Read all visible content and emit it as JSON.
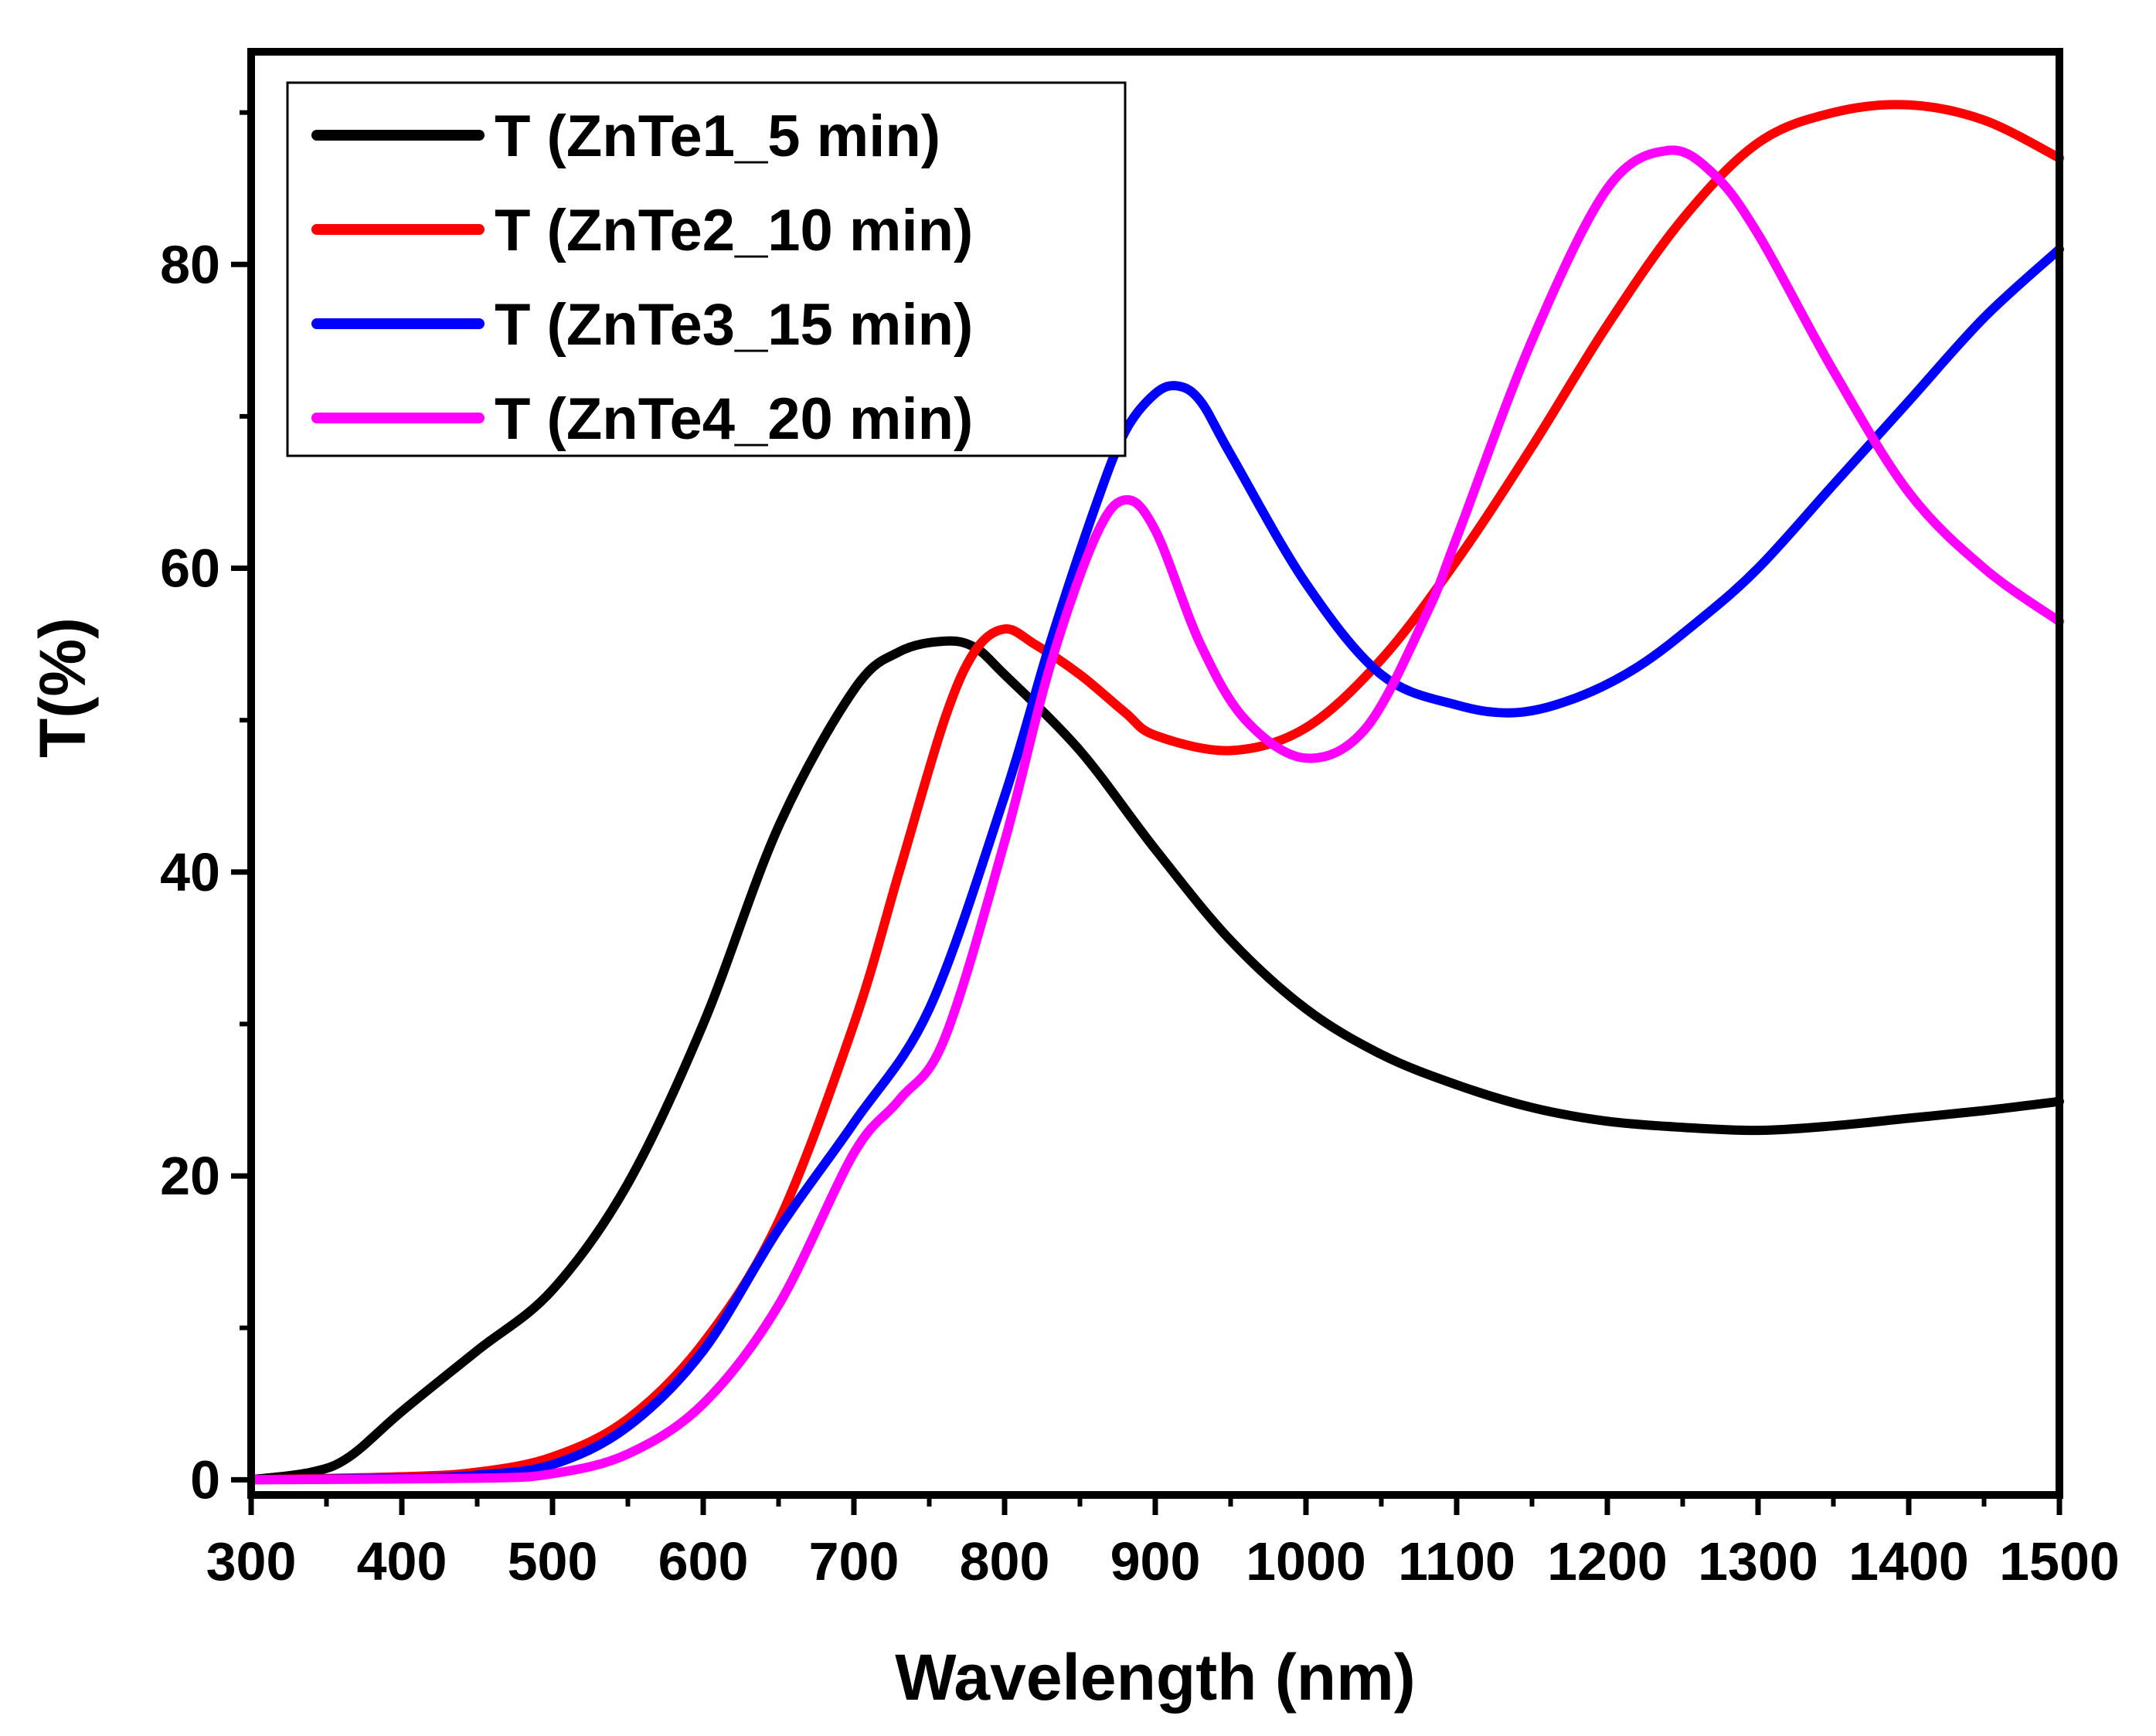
{
  "chart_data": {
    "type": "line",
    "title": "",
    "xlabel": "Wavelength (nm)",
    "ylabel": "T(%)",
    "xlim": [
      300,
      1500
    ],
    "ylim": [
      -1,
      94
    ],
    "xticks": [
      300,
      400,
      500,
      600,
      700,
      800,
      900,
      1000,
      1100,
      1200,
      1300,
      1400,
      1500
    ],
    "xtick_labels": [
      "300",
      "400",
      "500",
      "600",
      "700",
      "800",
      "900",
      "1000",
      "1100",
      "1200",
      "1300",
      "1400",
      "1500"
    ],
    "yticks": [
      0,
      20,
      40,
      60,
      80
    ],
    "ytick_labels": [
      "0",
      "20",
      "40",
      "60",
      "80"
    ],
    "grid": false,
    "legend_position": "top-left",
    "series": [
      {
        "name": "T (ZnTe1_5 min)",
        "color": "#000000",
        "x": [
          300,
          340,
          365,
          400,
          450,
          500,
          550,
          600,
          650,
          700,
          730,
          760,
          780,
          800,
          850,
          900,
          950,
          1000,
          1050,
          1100,
          1150,
          1200,
          1250,
          1300,
          1350,
          1400,
          1450,
          1500
        ],
        "y": [
          0,
          0.5,
          1.5,
          4.5,
          8.5,
          12.5,
          19.5,
          30,
          43,
          52,
          54.5,
          55.2,
          54.8,
          53,
          48,
          41.5,
          35.5,
          31,
          28,
          26,
          24.5,
          23.6,
          23.2,
          23,
          23.3,
          23.8,
          24.3,
          24.9
        ]
      },
      {
        "name": "T (ZnTe2_10 min)",
        "color": "#ff0000",
        "x": [
          300,
          400,
          450,
          500,
          550,
          600,
          650,
          700,
          730,
          760,
          780,
          800,
          820,
          850,
          880,
          900,
          950,
          1000,
          1050,
          1100,
          1150,
          1200,
          1250,
          1300,
          1350,
          1400,
          1450,
          1500
        ],
        "y": [
          0,
          0.2,
          0.5,
          1.5,
          4,
          9,
          17,
          30,
          40,
          50,
          54.5,
          56,
          55,
          53,
          50.5,
          49,
          48,
          49.5,
          54,
          60.5,
          68,
          76,
          83,
          88,
          90,
          90.5,
          89.5,
          87
        ]
      },
      {
        "name": "T (ZnTe3_15 min)",
        "color": "#0000ff",
        "x": [
          300,
          400,
          450,
          500,
          550,
          600,
          650,
          700,
          750,
          800,
          830,
          860,
          880,
          900,
          915,
          930,
          950,
          1000,
          1050,
          1100,
          1140,
          1180,
          1220,
          1260,
          1300,
          1350,
          1400,
          1450,
          1500
        ],
        "y": [
          0,
          0.1,
          0.3,
          1,
          3.5,
          8.5,
          16.5,
          23.5,
          31,
          45,
          55,
          64,
          69,
          71.5,
          72,
          71,
          67.5,
          59,
          53,
          51,
          50.5,
          51.5,
          53.5,
          56.5,
          60,
          65.5,
          71,
          76.5,
          81
        ]
      },
      {
        "name": "T (ZnTe4_20 min)",
        "color": "#ff00ff",
        "x": [
          300,
          450,
          500,
          550,
          600,
          650,
          700,
          730,
          760,
          800,
          830,
          860,
          880,
          900,
          930,
          960,
          1000,
          1040,
          1080,
          1100,
          1150,
          1200,
          1240,
          1270,
          1300,
          1350,
          1400,
          1450,
          1500
        ],
        "y": [
          0,
          0.1,
          0.4,
          1.7,
          5,
          11.5,
          21.5,
          25,
          29,
          42,
          53.5,
          62,
          64.5,
          62.5,
          55,
          50,
          47.5,
          49.5,
          57,
          62,
          75,
          85,
          87.5,
          86,
          82,
          73,
          65,
          60,
          56.5
        ]
      }
    ]
  }
}
